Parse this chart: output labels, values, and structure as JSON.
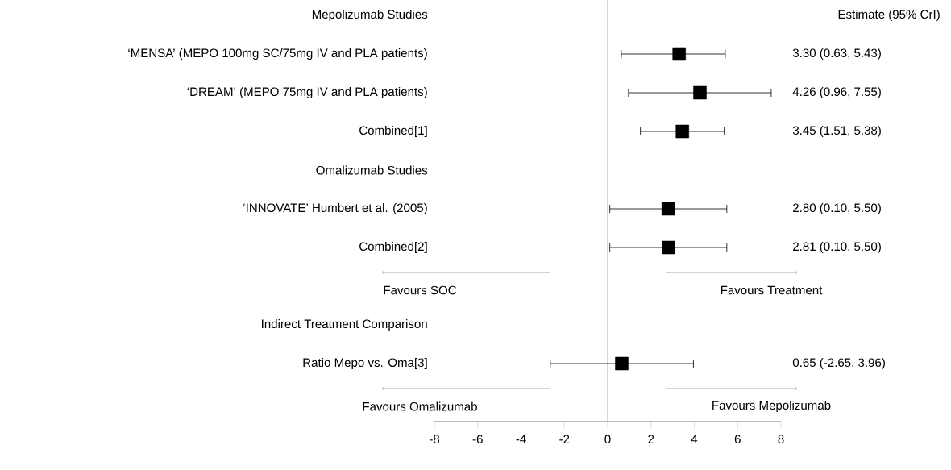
{
  "chart_data": {
    "type": "scatter",
    "orientation": "horizontal",
    "marker": "square",
    "color": "#000000",
    "categories": [
      "Mepolizumab Studies",
      "‘MENSA’ (MEPO 100mg SC/75mg IV and PLA patients)",
      "‘DREAM’ (MEPO 75mg IV and PLA patients)",
      "Combined[1]",
      "Omalizumab Studies",
      "‘INNOVATE’ Humbert et al. (2005)",
      "Combined[2]",
      null,
      "Indirect Treatment Comparison",
      "Ratio Mepo vs. Oma[3]",
      null
    ],
    "values": [
      null,
      3.3,
      4.26,
      3.45,
      null,
      2.8,
      2.81,
      null,
      null,
      0.65,
      null
    ],
    "errors": [
      null,
      [
        0.63,
        5.43
      ],
      [
        0.96,
        7.55
      ],
      [
        1.51,
        5.38
      ],
      null,
      [
        0.1,
        5.5
      ],
      [
        0.1,
        5.5
      ],
      null,
      null,
      [
        -2.65,
        3.96
      ],
      null
    ],
    "value_labels": [
      null,
      "3.30 (0.63, 5.43)",
      "4.26 (0.96, 7.55)",
      "3.45 (1.51, 5.38)",
      null,
      "2.80 (0.10, 5.50)",
      "2.81 (0.10, 5.50)",
      null,
      null,
      "0.65 (-2.65, 3.96)",
      null
    ],
    "xlim": [
      -8,
      8
    ],
    "xticks": [
      -8,
      -6,
      -4,
      -2,
      0,
      2,
      4,
      6,
      8
    ],
    "ref_lines": [
      {
        "axis": "x",
        "value": 0,
        "color": "#999999"
      }
    ],
    "annotations": [
      "Estimate (95% CrI)",
      "Favours SOC",
      "Favours Treatment",
      "Favours Omalizumab",
      "Favours Mepolizumab"
    ]
  }
}
